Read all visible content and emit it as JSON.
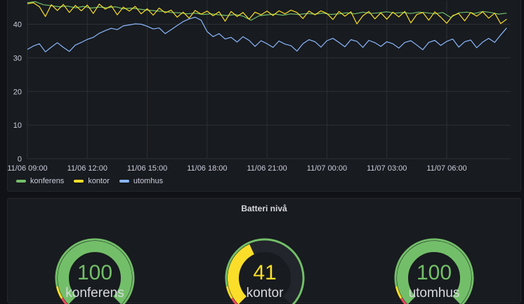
{
  "timeseries": {
    "colors": {
      "konferens": "#73bf69",
      "kontor": "#fade2a",
      "utomhus": "#8ab8ff"
    },
    "chart_data": {
      "type": "line",
      "title": "",
      "xlabel": "",
      "ylabel": "",
      "x_ticks": [
        "11/06 09:00",
        "11/06 12:00",
        "11/06 15:00",
        "11/06 18:00",
        "11/06 21:00",
        "11/07 00:00",
        "11/07 03:00",
        "11/07 06:00"
      ],
      "y_ticks": [
        "0",
        "10",
        "20",
        "30",
        "40"
      ],
      "ylim": [
        0,
        47
      ],
      "xlim_hours": [
        0,
        24.2
      ],
      "grid": true,
      "legend_position": "bottom-left",
      "series": [
        {
          "name": "konferens",
          "values": [
            [
              0,
              46.4
            ],
            [
              0.4,
              46.7
            ],
            [
              0.8,
              45.8
            ],
            [
              1.2,
              45.5
            ],
            [
              1.6,
              45.2
            ],
            [
              2.0,
              45.4
            ],
            [
              2.4,
              44.9
            ],
            [
              2.8,
              45.3
            ],
            [
              3.2,
              44.8
            ],
            [
              3.6,
              45.1
            ],
            [
              4.0,
              44.9
            ],
            [
              4.4,
              45.2
            ],
            [
              4.8,
              44.6
            ],
            [
              5.2,
              44.8
            ],
            [
              5.6,
              44.5
            ],
            [
              6.0,
              44.2
            ],
            [
              6.4,
              44.0
            ],
            [
              6.8,
              43.8
            ],
            [
              7.2,
              43.5
            ],
            [
              7.6,
              43.4
            ],
            [
              8.0,
              43.1
            ],
            [
              8.4,
              43.3
            ],
            [
              8.8,
              42.9
            ],
            [
              9.2,
              43.1
            ],
            [
              9.6,
              42.8
            ],
            [
              10.0,
              42.6
            ],
            [
              10.4,
              42.9
            ],
            [
              10.8,
              42.4
            ],
            [
              11.2,
              41.2
            ],
            [
              11.6,
              42.5
            ],
            [
              12.0,
              42.8
            ],
            [
              12.4,
              43.0
            ],
            [
              12.8,
              42.7
            ],
            [
              13.2,
              43.1
            ],
            [
              13.6,
              42.9
            ],
            [
              14.0,
              43.2
            ],
            [
              14.4,
              43.0
            ],
            [
              14.8,
              43.3
            ],
            [
              15.2,
              42.9
            ],
            [
              15.6,
              43.1
            ],
            [
              16.0,
              43.4
            ],
            [
              16.4,
              43.1
            ],
            [
              16.8,
              43.6
            ],
            [
              17.2,
              43.2
            ],
            [
              17.6,
              43.4
            ],
            [
              18.0,
              43.7
            ],
            [
              18.4,
              43.3
            ],
            [
              18.8,
              43.5
            ],
            [
              19.2,
              43.2
            ],
            [
              19.6,
              43.6
            ],
            [
              20.0,
              43.4
            ],
            [
              20.4,
              43.1
            ],
            [
              20.8,
              43.5
            ],
            [
              21.2,
              42.0
            ],
            [
              21.6,
              43.4
            ],
            [
              22.0,
              43.6
            ],
            [
              22.4,
              43.2
            ],
            [
              22.8,
              43.8
            ],
            [
              23.2,
              43.5
            ],
            [
              23.6,
              43.0
            ],
            [
              24.0,
              43.3
            ]
          ]
        },
        {
          "name": "kontor",
          "values": [
            [
              0,
              46.1
            ],
            [
              0.3,
              46.4
            ],
            [
              0.6,
              45.2
            ],
            [
              0.9,
              42.3
            ],
            [
              1.2,
              45.8
            ],
            [
              1.5,
              44.1
            ],
            [
              1.8,
              45.9
            ],
            [
              2.1,
              43.5
            ],
            [
              2.4,
              45.6
            ],
            [
              2.7,
              44.0
            ],
            [
              3.0,
              45.7
            ],
            [
              3.3,
              43.2
            ],
            [
              3.6,
              46.0
            ],
            [
              3.9,
              44.5
            ],
            [
              4.2,
              45.5
            ],
            [
              4.5,
              42.8
            ],
            [
              4.8,
              45.1
            ],
            [
              5.1,
              43.9
            ],
            [
              5.4,
              45.3
            ],
            [
              5.7,
              43.1
            ],
            [
              6.0,
              44.6
            ],
            [
              6.3,
              42.7
            ],
            [
              6.6,
              44.8
            ],
            [
              6.9,
              43.4
            ],
            [
              7.2,
              44.2
            ],
            [
              7.5,
              42.1
            ],
            [
              7.8,
              43.6
            ],
            [
              8.1,
              41.8
            ],
            [
              8.4,
              44.1
            ],
            [
              8.7,
              43.0
            ],
            [
              9.0,
              43.9
            ],
            [
              9.3,
              42.5
            ],
            [
              9.6,
              43.7
            ],
            [
              9.9,
              40.9
            ],
            [
              10.2,
              43.8
            ],
            [
              10.5,
              42.3
            ],
            [
              10.8,
              43.5
            ],
            [
              11.1,
              41.5
            ],
            [
              11.4,
              43.6
            ],
            [
              11.7,
              42.8
            ],
            [
              12.0,
              43.9
            ],
            [
              12.3,
              42.6
            ],
            [
              12.6,
              44.0
            ],
            [
              12.9,
              43.1
            ],
            [
              13.2,
              44.2
            ],
            [
              13.5,
              43.5
            ],
            [
              13.8,
              41.7
            ],
            [
              14.1,
              43.9
            ],
            [
              14.4,
              42.8
            ],
            [
              14.7,
              44.0
            ],
            [
              15.0,
              43.2
            ],
            [
              15.3,
              41.4
            ],
            [
              15.6,
              43.8
            ],
            [
              15.9,
              42.4
            ],
            [
              16.2,
              43.7
            ],
            [
              16.5,
              40.1
            ],
            [
              16.8,
              42.5
            ],
            [
              17.1,
              43.8
            ],
            [
              17.4,
              41.6
            ],
            [
              17.7,
              43.4
            ],
            [
              18.0,
              41.5
            ],
            [
              18.3,
              43.6
            ],
            [
              18.6,
              42.2
            ],
            [
              18.9,
              43.8
            ],
            [
              19.2,
              40.4
            ],
            [
              19.5,
              42.9
            ],
            [
              19.8,
              43.5
            ],
            [
              20.1,
              41.2
            ],
            [
              20.4,
              43.7
            ],
            [
              20.7,
              42.1
            ],
            [
              21.0,
              40.3
            ],
            [
              21.3,
              42.6
            ],
            [
              21.6,
              43.2
            ],
            [
              21.9,
              41.0
            ],
            [
              22.2,
              43.5
            ],
            [
              22.5,
              42.4
            ],
            [
              22.8,
              43.7
            ],
            [
              23.1,
              41.8
            ],
            [
              23.4,
              43.3
            ],
            [
              23.7,
              40.2
            ],
            [
              24.0,
              41.5
            ]
          ]
        },
        {
          "name": "utomhus",
          "values": [
            [
              0,
              32.5
            ],
            [
              0.3,
              33.5
            ],
            [
              0.6,
              34.2
            ],
            [
              0.9,
              31.8
            ],
            [
              1.2,
              33.2
            ],
            [
              1.5,
              34.5
            ],
            [
              1.8,
              33.1
            ],
            [
              2.1,
              31.9
            ],
            [
              2.4,
              33.8
            ],
            [
              2.7,
              34.6
            ],
            [
              3.0,
              35.5
            ],
            [
              3.3,
              36.1
            ],
            [
              3.6,
              37.3
            ],
            [
              3.9,
              38.1
            ],
            [
              4.2,
              38.8
            ],
            [
              4.5,
              38.4
            ],
            [
              4.8,
              39.5
            ],
            [
              5.1,
              39.8
            ],
            [
              5.4,
              40.1
            ],
            [
              5.7,
              40.0
            ],
            [
              6.0,
              39.4
            ],
            [
              6.3,
              38.6
            ],
            [
              6.6,
              38.9
            ],
            [
              6.9,
              37.2
            ],
            [
              7.2,
              38.4
            ],
            [
              7.5,
              39.6
            ],
            [
              7.8,
              40.8
            ],
            [
              8.1,
              41.6
            ],
            [
              8.4,
              42.1
            ],
            [
              8.7,
              41.2
            ],
            [
              9.0,
              37.8
            ],
            [
              9.3,
              36.3
            ],
            [
              9.6,
              37.2
            ],
            [
              9.9,
              35.6
            ],
            [
              10.2,
              36.1
            ],
            [
              10.5,
              34.7
            ],
            [
              10.8,
              36.3
            ],
            [
              11.1,
              35.2
            ],
            [
              11.4,
              33.4
            ],
            [
              11.7,
              35.1
            ],
            [
              12.0,
              34.2
            ],
            [
              12.3,
              33.1
            ],
            [
              12.6,
              35.0
            ],
            [
              12.9,
              34.1
            ],
            [
              13.2,
              33.6
            ],
            [
              13.5,
              32.0
            ],
            [
              13.8,
              34.2
            ],
            [
              14.1,
              35.4
            ],
            [
              14.4,
              34.8
            ],
            [
              14.7,
              33.2
            ],
            [
              15.0,
              35.1
            ],
            [
              15.3,
              35.8
            ],
            [
              15.6,
              34.6
            ],
            [
              15.9,
              33.3
            ],
            [
              16.2,
              35.4
            ],
            [
              16.5,
              34.9
            ],
            [
              16.8,
              33.1
            ],
            [
              17.1,
              35.2
            ],
            [
              17.4,
              34.5
            ],
            [
              17.7,
              33.4
            ],
            [
              18.0,
              34.8
            ],
            [
              18.3,
              34.2
            ],
            [
              18.6,
              32.9
            ],
            [
              18.9,
              34.6
            ],
            [
              19.2,
              35.1
            ],
            [
              19.5,
              33.8
            ],
            [
              19.8,
              32.4
            ],
            [
              20.1,
              34.6
            ],
            [
              20.4,
              35.2
            ],
            [
              20.7,
              33.7
            ],
            [
              21.0,
              34.9
            ],
            [
              21.3,
              35.6
            ],
            [
              21.6,
              33.2
            ],
            [
              21.9,
              34.8
            ],
            [
              22.2,
              35.3
            ],
            [
              22.5,
              33.0
            ],
            [
              22.8,
              34.7
            ],
            [
              23.1,
              35.8
            ],
            [
              23.4,
              34.6
            ],
            [
              23.7,
              36.8
            ],
            [
              24.0,
              38.9
            ]
          ]
        }
      ]
    }
  },
  "gauges": {
    "title": "Batteri nivå",
    "max": 100,
    "thresholds": {
      "red": "#f2495c",
      "yellow": "#fade2a",
      "green": "#73bf69",
      "track": "#22252b"
    },
    "items": [
      {
        "name": "konferens",
        "value": 100,
        "value_label": "100",
        "color": "#73bf69"
      },
      {
        "name": "kontor",
        "value": 41,
        "value_label": "41",
        "color": "#fade2a"
      },
      {
        "name": "utomhus",
        "value": 100,
        "value_label": "100",
        "color": "#73bf69"
      }
    ]
  }
}
